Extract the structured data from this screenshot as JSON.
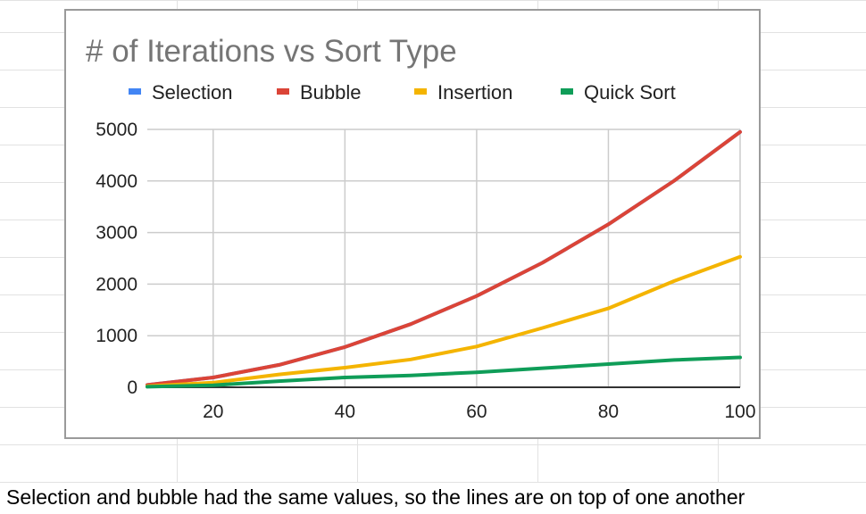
{
  "chart_data": {
    "type": "line",
    "title": "# of Iterations vs Sort Type",
    "xlabel": "",
    "ylabel": "",
    "x": [
      10,
      20,
      30,
      40,
      50,
      60,
      70,
      80,
      90,
      100
    ],
    "xlim": [
      10,
      100
    ],
    "ylim": [
      0,
      5000
    ],
    "x_ticks": [
      20,
      40,
      60,
      80,
      100
    ],
    "y_ticks": [
      0,
      1000,
      2000,
      3000,
      4000,
      5000
    ],
    "grid": true,
    "legend_position": "top",
    "series": [
      {
        "name": "Selection",
        "color": "#4285F4",
        "values": [
          45,
          190,
          435,
          780,
          1225,
          1770,
          2415,
          3160,
          4005,
          4950
        ]
      },
      {
        "name": "Bubble",
        "color": "#DB4437",
        "values": [
          45,
          190,
          435,
          780,
          1225,
          1770,
          2415,
          3160,
          4005,
          4950
        ]
      },
      {
        "name": "Insertion",
        "color": "#F4B400",
        "values": [
          20,
          90,
          250,
          380,
          540,
          790,
          1150,
          1530,
          2060,
          2530
        ]
      },
      {
        "name": "Quick Sort",
        "color": "#0F9D58",
        "values": [
          10,
          40,
          120,
          190,
          230,
          290,
          370,
          450,
          530,
          580
        ]
      }
    ]
  },
  "caption": "Selection and bubble had the same values, so the lines are on top of one another"
}
